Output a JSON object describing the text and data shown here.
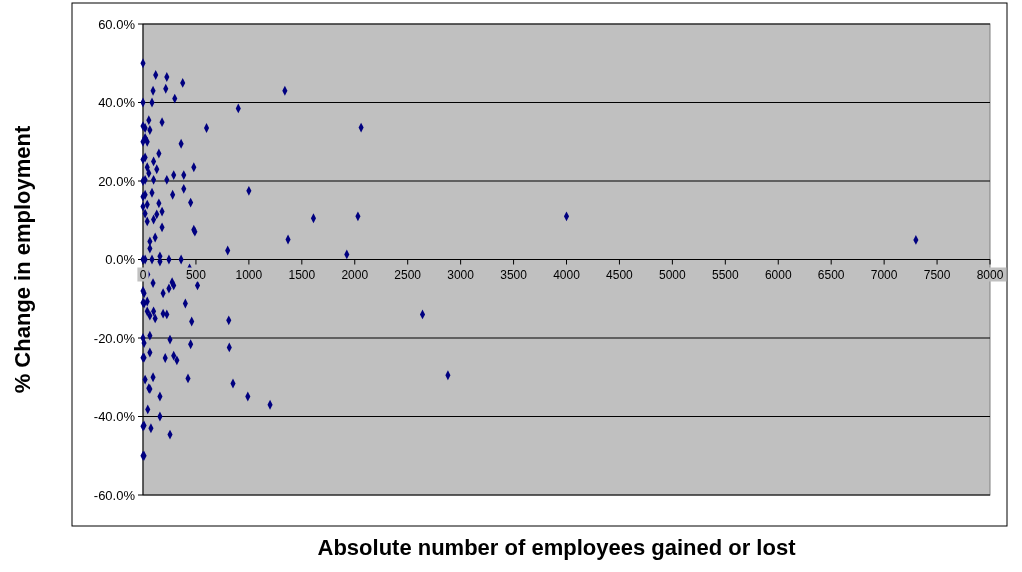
{
  "chart_data": {
    "type": "scatter",
    "xlabel": "Absolute number of employees gained or lost",
    "ylabel": "% Change in employment",
    "xlim": [
      0,
      8000
    ],
    "xticks": [
      0,
      500,
      1000,
      1500,
      2000,
      2500,
      3000,
      3500,
      4000,
      4500,
      5000,
      5500,
      6000,
      6500,
      7000,
      7500,
      8000
    ],
    "ylim": [
      -60,
      60
    ],
    "yticks": [
      {
        "value": -60,
        "label": "-60.0%"
      },
      {
        "value": -40,
        "label": "-40.0%"
      },
      {
        "value": -20,
        "label": "-20.0%"
      },
      {
        "value": 0,
        "label": "0.0%"
      },
      {
        "value": 20,
        "label": "20.0%"
      },
      {
        "value": 40,
        "label": "40.0%"
      },
      {
        "value": 60,
        "label": "60.0%"
      }
    ],
    "grid": "y",
    "marker": "diamond",
    "series": [
      {
        "color": "#000080",
        "x": [
          0,
          0,
          0,
          0,
          0,
          0,
          0,
          0,
          0,
          0,
          0,
          0,
          0,
          0,
          0,
          120,
          225,
          375,
          215,
          95,
          300,
          85,
          900,
          55,
          180,
          20,
          65,
          600,
          20,
          40,
          360,
          150,
          20,
          100,
          40,
          130,
          480,
          55,
          290,
          385,
          20,
          100,
          225,
          385,
          1000,
          20,
          85,
          280,
          150,
          40,
          450,
          180,
          20,
          130,
          40,
          100,
          180,
          480,
          490,
          115,
          65,
          65,
          800,
          85,
          160,
          245,
          360,
          20,
          160,
          440,
          45,
          95,
          275,
          290,
          515,
          10,
          190,
          245,
          40,
          10,
          400,
          40,
          100,
          65,
          115,
          190,
          225,
          460,
          810,
          65,
          255,
          10,
          450,
          815,
          65,
          10,
          210,
          290,
          320,
          20,
          95,
          425,
          55,
          65,
          850,
          160,
          990,
          1200,
          45,
          160,
          10,
          75,
          255,
          10,
          1340,
          2060,
          1610,
          2030,
          1370,
          1925,
          4000,
          7300,
          2640,
          2880
        ],
        "values": [
          50,
          40,
          34,
          30,
          25.5,
          20,
          16,
          13.5,
          0,
          -8,
          -11,
          -20,
          -25,
          -42.5,
          -50,
          47,
          46.5,
          45,
          43.5,
          43,
          41,
          40,
          38.5,
          35.5,
          35,
          33.5,
          33,
          33.5,
          31,
          30,
          29.5,
          27,
          26,
          25,
          23.5,
          23,
          23.5,
          22,
          21.5,
          21.5,
          20.3,
          20.3,
          20.3,
          18,
          17.5,
          16.5,
          17,
          16.5,
          14.3,
          14,
          14.5,
          12.2,
          11.7,
          11.5,
          9.7,
          10.2,
          8.2,
          7.6,
          7.1,
          5.6,
          4.6,
          2.8,
          2.3,
          0,
          0.8,
          0,
          0,
          0,
          -0.5,
          -2.3,
          -3.8,
          -6,
          -5.8,
          -6.6,
          -6.6,
          -8.6,
          -8.6,
          -7.4,
          -10.7,
          -11.2,
          -11.2,
          -13.2,
          -13.2,
          -14.3,
          -15,
          -13.8,
          -14,
          -15.8,
          -15.5,
          -19.4,
          -20.4,
          -21.3,
          -21.6,
          -22.4,
          -23.7,
          -25,
          -25.1,
          -24.5,
          -25.7,
          -30.6,
          -30,
          -30.3,
          -32.8,
          -33,
          -31.6,
          -34.9,
          -34.9,
          -37,
          -38.2,
          -40,
          -42.3,
          -43,
          -44.6,
          -50,
          43,
          33.6,
          10.5,
          11,
          5.1,
          1.3,
          11,
          5,
          -14,
          -29.5
        ]
      }
    ]
  }
}
